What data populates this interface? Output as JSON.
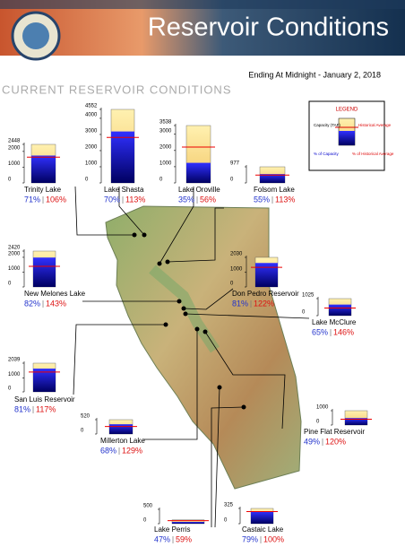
{
  "header": {
    "title": "Reservoir Conditions",
    "date": "Ending At Midnight - January 2, 2018",
    "section": "CURRENT RESERVOIR CONDITIONS"
  },
  "legend": {
    "title": "LEGEND",
    "capacity": "Capacity (TAF)",
    "historical": "Historical Average",
    "pct_capacity": "% of Capacity",
    "pct_historical": "% of Historical Average"
  },
  "chart_data": [
    {
      "type": "reservoir",
      "title": "Trinity Lake",
      "capacity": 2448,
      "storage": 1738,
      "historical_average": 1640,
      "values": [
        71,
        106
      ],
      "value_labels": [
        "71%",
        "106%"
      ],
      "ylim": [
        0,
        2448
      ],
      "yticks": [
        0,
        1000,
        2000,
        2448
      ]
    },
    {
      "type": "reservoir",
      "title": "Lake Shasta",
      "capacity": 4552,
      "storage": 3186,
      "historical_average": 2820,
      "values": [
        70,
        113
      ],
      "value_labels": [
        "70%",
        "113%"
      ],
      "ylim": [
        0,
        4552
      ],
      "yticks": [
        0,
        1000,
        2000,
        3000,
        4000,
        4552
      ]
    },
    {
      "type": "reservoir",
      "title": "Lake Oroville",
      "capacity": 3538,
      "storage": 1238,
      "historical_average": 2211,
      "values": [
        35,
        56
      ],
      "value_labels": [
        "35%",
        "56%"
      ],
      "ylim": [
        0,
        3538
      ],
      "yticks": [
        0,
        1000,
        2000,
        3000,
        3538
      ]
    },
    {
      "type": "reservoir",
      "title": "Folsom Lake",
      "capacity": 977,
      "storage": 537,
      "historical_average": 475,
      "values": [
        55,
        113
      ],
      "value_labels": [
        "55%",
        "113%"
      ],
      "ylim": [
        0,
        977
      ],
      "yticks": [
        0,
        977
      ]
    },
    {
      "type": "reservoir",
      "title": "New Melones Lake",
      "capacity": 2420,
      "storage": 1984,
      "historical_average": 1388,
      "values": [
        82,
        143
      ],
      "value_labels": [
        "82%",
        "143%"
      ],
      "ylim": [
        0,
        2420
      ],
      "yticks": [
        0,
        1000,
        2000,
        2420
      ]
    },
    {
      "type": "reservoir",
      "title": "Don Pedro Reservoir",
      "capacity": 2030,
      "storage": 1644,
      "historical_average": 1348,
      "values": [
        81,
        122
      ],
      "value_labels": [
        "81%",
        "122%"
      ],
      "ylim": [
        0,
        2030
      ],
      "yticks": [
        0,
        1000,
        2030
      ]
    },
    {
      "type": "reservoir",
      "title": "Lake McClure",
      "capacity": 1025,
      "storage": 666,
      "historical_average": 456,
      "values": [
        65,
        146
      ],
      "value_labels": [
        "65%",
        "146%"
      ],
      "ylim": [
        0,
        1025
      ],
      "yticks": [
        0,
        1025
      ]
    },
    {
      "type": "reservoir",
      "title": "San Luis Reservoir",
      "capacity": 2039,
      "storage": 1652,
      "historical_average": 1412,
      "values": [
        81,
        117
      ],
      "value_labels": [
        "81%",
        "117%"
      ],
      "ylim": [
        0,
        2039
      ],
      "yticks": [
        0,
        1000,
        2039
      ]
    },
    {
      "type": "reservoir",
      "title": "Pine Flat Reservoir",
      "capacity": 1000,
      "storage": 490,
      "historical_average": 408,
      "values": [
        49,
        120
      ],
      "value_labels": [
        "49%",
        "120%"
      ],
      "ylim": [
        0,
        1000
      ],
      "yticks": [
        0,
        1000
      ]
    },
    {
      "type": "reservoir",
      "title": "Millerton Lake",
      "capacity": 520,
      "storage": 354,
      "historical_average": 274,
      "values": [
        68,
        129
      ],
      "value_labels": [
        "68%",
        "129%"
      ],
      "ylim": [
        0,
        520
      ],
      "yticks": [
        0,
        520
      ]
    },
    {
      "type": "reservoir",
      "title": "Lake Perris",
      "capacity": 131,
      "storage": 62,
      "historical_average": 105,
      "values": [
        47,
        59
      ],
      "value_labels": [
        "47%",
        "59%"
      ],
      "ylim": [
        0,
        500
      ],
      "yticks": [
        0,
        500
      ]
    },
    {
      "type": "reservoir",
      "title": "Castaic Lake",
      "capacity": 325,
      "storage": 257,
      "historical_average": 257,
      "values": [
        79,
        100
      ],
      "value_labels": [
        "79%",
        "100%"
      ],
      "ylim": [
        0,
        325
      ],
      "yticks": [
        0,
        325
      ]
    }
  ]
}
